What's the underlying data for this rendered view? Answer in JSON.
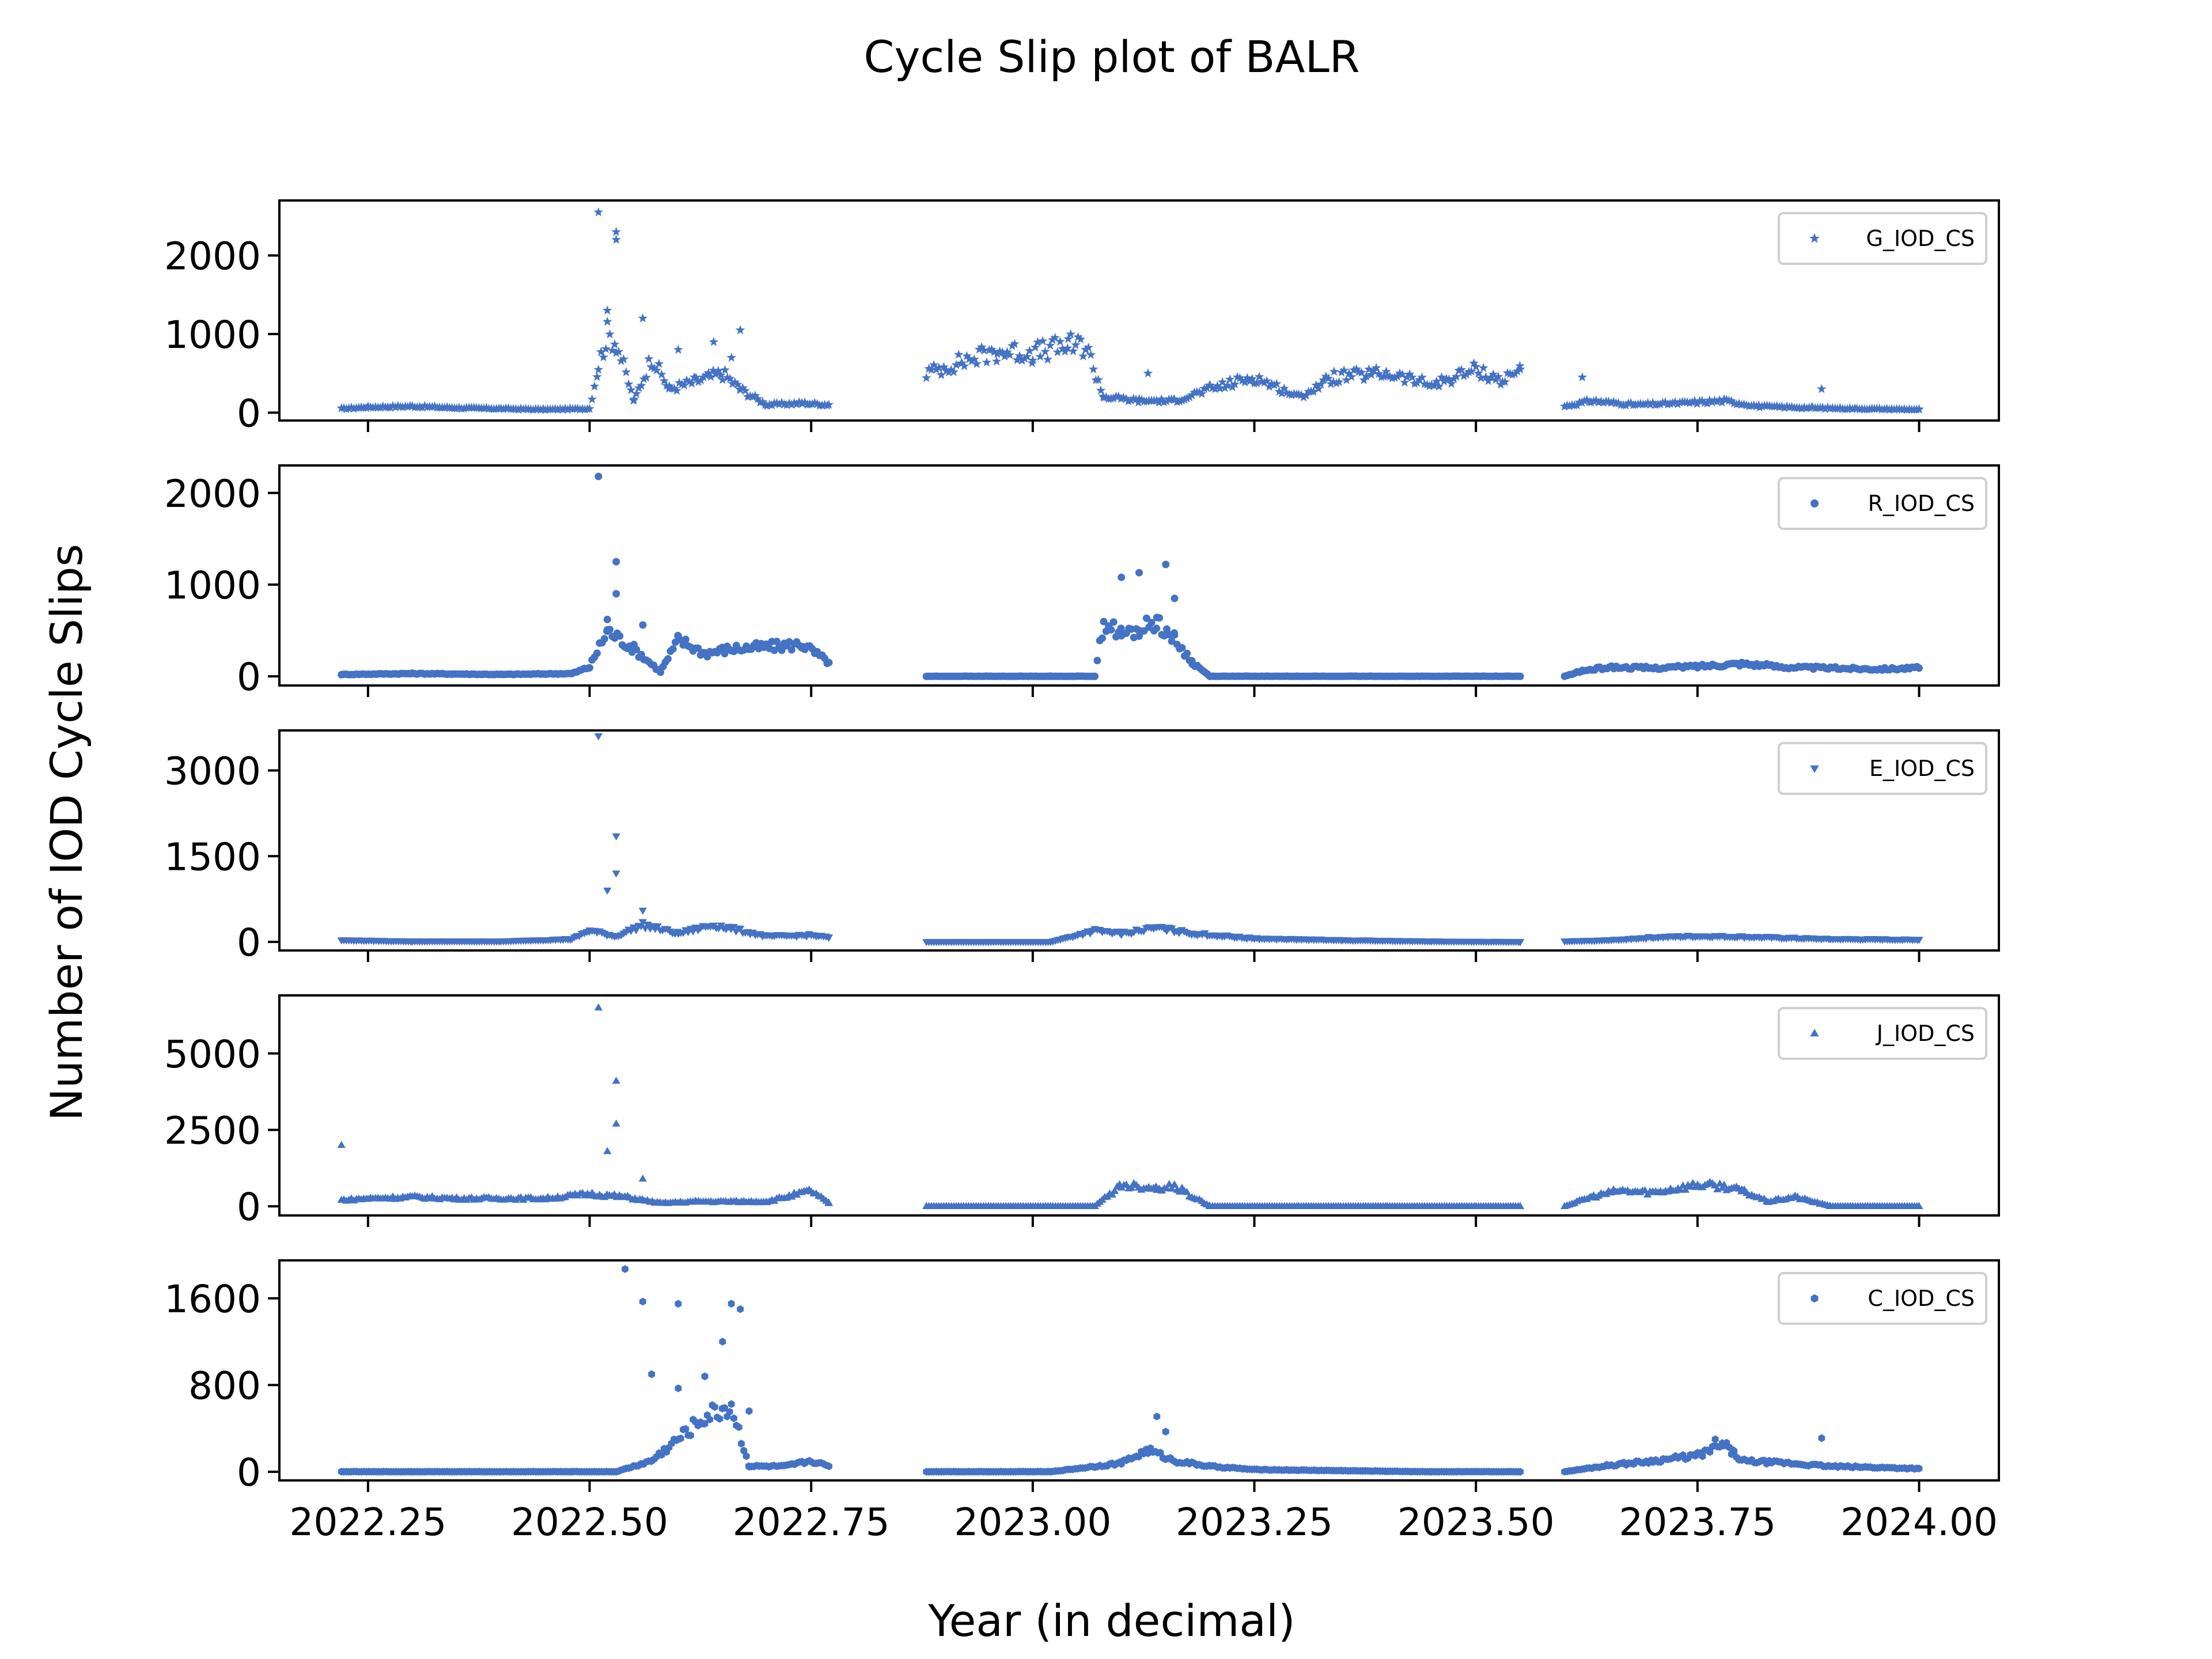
{
  "figure": {
    "title": "Cycle Slip plot of BALR",
    "xlabel": "Year (in decimal)",
    "ylabel": "Number of IOD Cycle Slips",
    "marker_color": "#4472c4"
  },
  "chart_data": [
    {
      "type": "scatter",
      "panel": "G",
      "xlim": [
        2022.15,
        2024.09
      ],
      "ylim": [
        -100,
        2700
      ],
      "yticks": [
        0,
        1000,
        2000
      ],
      "xticks": [
        2022.25,
        2022.5,
        2022.75,
        2023.0,
        2023.25,
        2023.5,
        2023.75,
        2024.0
      ],
      "xticklabels_visible": false,
      "grid": false,
      "legend": {
        "label": "G_IOD_CS",
        "marker": "star",
        "position": "top-right"
      },
      "series": [
        {
          "name": "G_IOD_CS",
          "segments": [
            {
              "x": [
                2022.22,
                2022.25,
                2022.3,
                2022.35,
                2022.4,
                2022.45,
                2022.5,
                2022.51,
                2022.52,
                2022.53,
                2022.55,
                2022.57,
                2022.59,
                2022.62,
                2022.65,
                2022.67,
                2022.7,
                2022.74,
                2022.77
              ],
              "y": [
                50,
                70,
                80,
                60,
                50,
                40,
                50,
                600,
                1000,
                900,
                150,
                700,
                300,
                400,
                500,
                300,
                100,
                120,
                100
              ]
            },
            {
              "x": [
                2022.88,
                2022.92,
                2022.96,
                2023.0,
                2023.04,
                2023.06,
                2023.08,
                2023.12,
                2023.16,
                2023.2,
                2023.25,
                2023.3,
                2023.34,
                2023.4,
                2023.45,
                2023.5,
                2023.53,
                2023.55
              ],
              "y": [
                500,
                650,
                780,
                760,
                850,
                850,
                200,
                150,
                150,
                300,
                450,
                200,
                450,
                500,
                350,
                550,
                400,
                550
              ]
            },
            {
              "x": [
                2023.6,
                2023.63,
                2023.68,
                2023.73,
                2023.78,
                2023.82,
                2023.88,
                2023.93,
                2024.0
              ],
              "y": [
                80,
                150,
                100,
                120,
                150,
                80,
                60,
                50,
                40
              ]
            }
          ],
          "outliers": {
            "x": [
              2022.51,
              2022.52,
              2022.53,
              2022.53,
              2022.56,
              2022.6,
              2022.64,
              2022.66,
              2022.67,
              2023.13,
              2023.62,
              2023.89
            ],
            "y": [
              2550,
              1300,
              2300,
              2200,
              1200,
              800,
              900,
              700,
              1050,
              500,
              450,
              300
            ]
          }
        }
      ]
    },
    {
      "type": "scatter",
      "panel": "R",
      "xlim": [
        2022.15,
        2024.09
      ],
      "ylim": [
        -100,
        2300
      ],
      "yticks": [
        0,
        1000,
        2000
      ],
      "xticks": [
        2022.25,
        2022.5,
        2022.75,
        2023.0,
        2023.25,
        2023.5,
        2023.75,
        2024.0
      ],
      "xticklabels_visible": false,
      "grid": false,
      "legend": {
        "label": "R_IOD_CS",
        "marker": "circle",
        "position": "top-right"
      },
      "series": [
        {
          "name": "R_IOD_CS",
          "segments": [
            {
              "x": [
                2022.22,
                2022.3,
                2022.4,
                2022.48,
                2022.5,
                2022.52,
                2022.55,
                2022.58,
                2022.6,
                2022.63,
                2022.66,
                2022.7,
                2022.74,
                2022.77
              ],
              "y": [
                20,
                30,
                20,
                30,
                100,
                500,
                300,
                50,
                400,
                250,
                300,
                320,
                350,
                150
              ]
            },
            {
              "x": [
                2022.88,
                2022.95,
                2023.02,
                2023.07,
                2023.08,
                2023.1,
                2023.12,
                2023.14,
                2023.16,
                2023.18,
                2023.2,
                2023.3,
                2023.4,
                2023.5,
                2023.55
              ],
              "y": [
                0,
                0,
                0,
                0,
                600,
                450,
                500,
                600,
                400,
                150,
                0,
                0,
                0,
                0,
                0
              ]
            },
            {
              "x": [
                2023.6,
                2023.62,
                2023.65,
                2023.7,
                2023.75,
                2023.8,
                2023.85,
                2023.9,
                2023.95,
                2024.0
              ],
              "y": [
                0,
                60,
                100,
                90,
                110,
                140,
                100,
                90,
                80,
                90
              ]
            }
          ],
          "outliers": {
            "x": [
              2022.51,
              2022.52,
              2022.53,
              2022.53,
              2022.56,
              2023.1,
              2023.12,
              2023.15,
              2023.16
            ],
            "y": [
              2180,
              620,
              900,
              1250,
              560,
              1080,
              1130,
              1220,
              850
            ]
          }
        }
      ]
    },
    {
      "type": "scatter",
      "panel": "E",
      "xlim": [
        2022.15,
        2024.09
      ],
      "ylim": [
        -150,
        3700
      ],
      "yticks": [
        0,
        1500,
        3000
      ],
      "xticks": [
        2022.25,
        2022.5,
        2022.75,
        2023.0,
        2023.25,
        2023.5,
        2023.75,
        2024.0
      ],
      "xticklabels_visible": false,
      "grid": false,
      "legend": {
        "label": "E_IOD_CS",
        "marker": "triangle-down",
        "position": "top-right"
      },
      "series": [
        {
          "name": "E_IOD_CS",
          "segments": [
            {
              "x": [
                2022.22,
                2022.3,
                2022.4,
                2022.48,
                2022.5,
                2022.53,
                2022.56,
                2022.6,
                2022.64,
                2022.67,
                2022.7,
                2022.75,
                2022.77
              ],
              "y": [
                30,
                10,
                10,
                50,
                200,
                100,
                300,
                150,
                300,
                200,
                100,
                120,
                80
              ]
            },
            {
              "x": [
                2022.88,
                2022.95,
                2023.02,
                2023.07,
                2023.1,
                2023.14,
                2023.18,
                2023.25,
                2023.35,
                2023.45,
                2023.55
              ],
              "y": [
                0,
                0,
                0,
                200,
                150,
                250,
                150,
                60,
                30,
                10,
                0
              ]
            },
            {
              "x": [
                2023.6,
                2023.65,
                2023.7,
                2023.75,
                2023.8,
                2023.9,
                2024.0
              ],
              "y": [
                10,
                30,
                80,
                100,
                90,
                50,
                40
              ]
            }
          ],
          "outliers": {
            "x": [
              2022.51,
              2022.52,
              2022.53,
              2022.53,
              2022.56
            ],
            "y": [
              3600,
              900,
              1850,
              1200,
              550
            ]
          }
        }
      ]
    },
    {
      "type": "scatter",
      "panel": "J",
      "xlim": [
        2022.15,
        2024.09
      ],
      "ylim": [
        -300,
        6900
      ],
      "yticks": [
        0,
        2500,
        5000
      ],
      "xticks": [
        2022.25,
        2022.5,
        2022.75,
        2023.0,
        2023.25,
        2023.5,
        2023.75,
        2024.0
      ],
      "xticklabels_visible": false,
      "grid": false,
      "legend": {
        "label": "J_IOD_CS",
        "marker": "triangle-up",
        "position": "top-right"
      },
      "series": [
        {
          "name": "J_IOD_CS",
          "segments": [
            {
              "x": [
                2022.22,
                2022.25,
                2022.3,
                2022.35,
                2022.4,
                2022.45,
                2022.5,
                2022.54,
                2022.58,
                2022.62,
                2022.66,
                2022.7,
                2022.75,
                2022.77
              ],
              "y": [
                200,
                250,
                300,
                250,
                250,
                250,
                400,
                300,
                100,
                150,
                150,
                150,
                500,
                100
              ]
            },
            {
              "x": [
                2022.88,
                2022.95,
                2023.02,
                2023.07,
                2023.1,
                2023.14,
                2023.16,
                2023.2,
                2023.3,
                2023.4,
                2023.5,
                2023.55
              ],
              "y": [
                0,
                0,
                0,
                0,
                700,
                600,
                650,
                0,
                0,
                0,
                0,
                0
              ]
            },
            {
              "x": [
                2023.6,
                2023.63,
                2023.66,
                2023.7,
                2023.75,
                2023.78,
                2023.8,
                2023.83,
                2023.86,
                2023.9,
                2023.95,
                2024.0
              ],
              "y": [
                0,
                300,
                500,
                450,
                700,
                650,
                500,
                150,
                300,
                0,
                0,
                0
              ]
            }
          ],
          "outliers": {
            "x": [
              2022.22,
              2022.51,
              2022.52,
              2022.53,
              2022.53,
              2022.56
            ],
            "y": [
              2000,
              6500,
              1800,
              2700,
              4100,
              900
            ]
          }
        }
      ]
    },
    {
      "type": "scatter",
      "panel": "C",
      "xlim": [
        2022.15,
        2024.09
      ],
      "ylim": [
        -80,
        1950
      ],
      "yticks": [
        0,
        800,
        1600
      ],
      "xticks": [
        2022.25,
        2022.5,
        2022.75,
        2023.0,
        2023.25,
        2023.5,
        2023.75,
        2024.0
      ],
      "xticklabels_visible": true,
      "xticklabels": [
        "2022.25",
        "2022.50",
        "2022.75",
        "2023.00",
        "2023.25",
        "2023.50",
        "2023.75",
        "2024.00"
      ],
      "grid": false,
      "legend": {
        "label": "C_IOD_CS",
        "marker": "hexagon",
        "position": "top-right"
      },
      "series": [
        {
          "name": "C_IOD_CS",
          "segments": [
            {
              "x": [
                2022.22,
                2022.3,
                2022.4,
                2022.48,
                2022.53,
                2022.57,
                2022.6,
                2022.63,
                2022.66,
                2022.68,
                2022.72,
                2022.75,
                2022.77
              ],
              "y": [
                0,
                0,
                0,
                0,
                0,
                100,
                300,
                500,
                600,
                50,
                50,
                100,
                50
              ]
            },
            {
              "x": [
                2022.88,
                2022.95,
                2023.02,
                2023.07,
                2023.1,
                2023.13,
                2023.16,
                2023.2,
                2023.25,
                2023.35,
                2023.45,
                2023.55
              ],
              "y": [
                0,
                0,
                0,
                50,
                80,
                200,
                100,
                50,
                20,
                10,
                0,
                0
              ]
            },
            {
              "x": [
                2023.6,
                2023.65,
                2023.7,
                2023.75,
                2023.78,
                2023.8,
                2023.85,
                2023.9,
                2023.95,
                2024.0
              ],
              "y": [
                0,
                60,
                100,
                150,
                250,
                100,
                80,
                50,
                40,
                30
              ]
            }
          ],
          "outliers": {
            "x": [
              2022.54,
              2022.56,
              2022.57,
              2022.6,
              2022.6,
              2022.63,
              2022.65,
              2022.66,
              2022.67,
              2022.68,
              2023.14,
              2023.15,
              2023.77,
              2023.79,
              2023.89
            ],
            "y": [
              1870,
              1570,
              900,
              770,
              1550,
              880,
              1200,
              1550,
              1500,
              560,
              510,
              370,
              300,
              200,
              310
            ]
          }
        }
      ]
    }
  ]
}
